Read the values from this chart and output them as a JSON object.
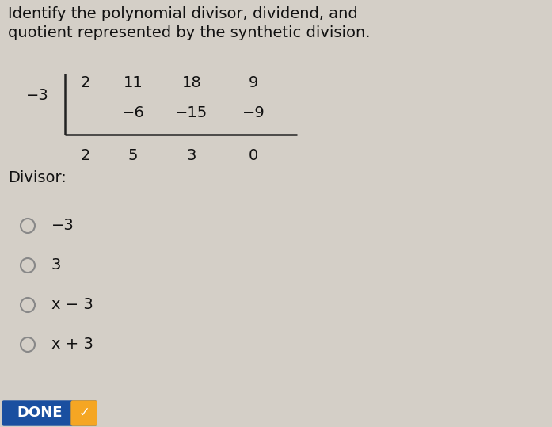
{
  "bg_color": "#d4cfc7",
  "title_line1": "Identify the polynomial divisor, dividend, and",
  "title_line2": "quotient represented by the synthetic division.",
  "title_fontsize": 14,
  "title_color": "#111111",
  "synth_divisor": "−3",
  "synth_top_row": [
    "2",
    "11",
    "18",
    "9"
  ],
  "synth_mid_row": [
    "",
    "−6",
    "−15",
    "−9"
  ],
  "synth_bot_row": [
    "2",
    "5",
    "3",
    "0"
  ],
  "divisor_label": "Divisor:",
  "options": [
    "−3",
    "3",
    "x − 3",
    "x + 3"
  ],
  "done_bg": "#1a4fa0",
  "done_text": "DONE",
  "done_check_color": "#f5a623",
  "font_color": "#111111",
  "option_fontsize": 14,
  "divisor_label_fontsize": 14,
  "synth_fontsize": 14
}
